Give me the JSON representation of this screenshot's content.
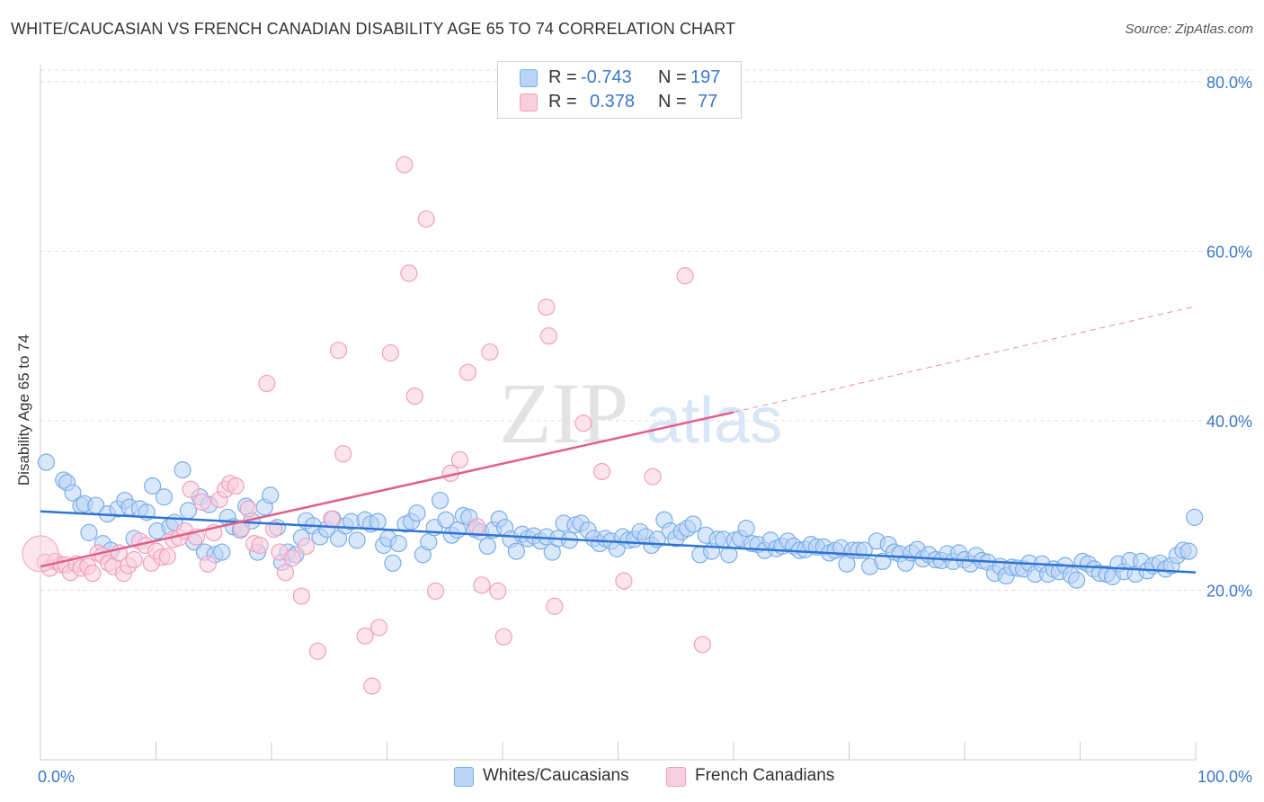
{
  "title": "WHITE/CAUCASIAN VS FRENCH CANADIAN DISABILITY AGE 65 TO 74 CORRELATION CHART",
  "source": "Source: ZipAtlas.com",
  "watermark": {
    "zip": "ZIP",
    "atlas": "atlas"
  },
  "legend": {
    "r_label": "R =",
    "n_label": "N =",
    "series": [
      {
        "r": "-0.743",
        "n": "197"
      },
      {
        "r": "0.378",
        "n": "77"
      }
    ]
  },
  "bottom_legend": [
    "Whites/Caucasians",
    "French Canadians"
  ],
  "chart_data": {
    "type": "scatter",
    "ylabel": "Disability Age 65 to 74",
    "xlim": [
      0,
      100
    ],
    "ylim": [
      0,
      82
    ],
    "x_tick_labels": [
      {
        "value": 0,
        "label": "0.0%"
      },
      {
        "value": 100,
        "label": "100.0%"
      }
    ],
    "y_tick_labels": [
      {
        "value": 20,
        "label": "20.0%"
      },
      {
        "value": 40,
        "label": "40.0%"
      },
      {
        "value": 60,
        "label": "60.0%"
      },
      {
        "value": 80,
        "label": "80.0%"
      }
    ],
    "series": [
      {
        "name": "Whites/Caucasians",
        "color": "#7aaee8",
        "fill": "#b9d4f5",
        "line_color": "#2f74d0",
        "trend": {
          "x": [
            0,
            100
          ],
          "y": [
            29.3,
            22.1
          ]
        },
        "points": [
          [
            0.5,
            35.1
          ],
          [
            2,
            33
          ],
          [
            2.3,
            32.7
          ],
          [
            2.8,
            31.5
          ],
          [
            3.5,
            30
          ],
          [
            3.8,
            30.2
          ],
          [
            4.2,
            26.8
          ],
          [
            4.8,
            30
          ],
          [
            5.4,
            25.5
          ],
          [
            5.8,
            29
          ],
          [
            6.1,
            24.7
          ],
          [
            6.7,
            29.6
          ],
          [
            7.3,
            30.6
          ],
          [
            7.7,
            29.8
          ],
          [
            8.1,
            26.1
          ],
          [
            8.6,
            29.6
          ],
          [
            9.2,
            29.2
          ],
          [
            9.7,
            32.3
          ],
          [
            10.1,
            27
          ],
          [
            10.7,
            31
          ],
          [
            11.2,
            27.5
          ],
          [
            11.6,
            28
          ],
          [
            12.3,
            34.2
          ],
          [
            12.8,
            29.4
          ],
          [
            13.3,
            25.7
          ],
          [
            13.8,
            31
          ],
          [
            14.2,
            24.5
          ],
          [
            14.6,
            30.1
          ],
          [
            15.1,
            24.2
          ],
          [
            15.7,
            24.5
          ],
          [
            16.2,
            28.6
          ],
          [
            16.7,
            27.5
          ],
          [
            17.3,
            27.1
          ],
          [
            17.8,
            29.9
          ],
          [
            18.3,
            28.2
          ],
          [
            18.8,
            24.5
          ],
          [
            19.4,
            29.8
          ],
          [
            19.9,
            31.2
          ],
          [
            20.5,
            27.4
          ],
          [
            20.9,
            23.3
          ],
          [
            21.4,
            24.5
          ],
          [
            22.1,
            24.2
          ],
          [
            22.6,
            26.2
          ],
          [
            23,
            28.2
          ],
          [
            23.6,
            27.6
          ],
          [
            24.2,
            26.3
          ],
          [
            24.8,
            27.2
          ],
          [
            25.3,
            28.4
          ],
          [
            25.8,
            26.1
          ],
          [
            26.4,
            27.6
          ],
          [
            26.9,
            28.1
          ],
          [
            27.4,
            25.9
          ],
          [
            28.1,
            28.3
          ],
          [
            28.6,
            27.8
          ],
          [
            29.2,
            28.1
          ],
          [
            29.7,
            25.3
          ],
          [
            30.1,
            26.1
          ],
          [
            30.5,
            23.2
          ],
          [
            31,
            25.5
          ],
          [
            31.6,
            27.8
          ],
          [
            32.1,
            28.1
          ],
          [
            32.6,
            29.1
          ],
          [
            33.1,
            24.2
          ],
          [
            33.6,
            25.7
          ],
          [
            34.1,
            27.4
          ],
          [
            34.6,
            30.6
          ],
          [
            35.1,
            28.3
          ],
          [
            35.6,
            26.5
          ],
          [
            36.1,
            27.1
          ],
          [
            36.6,
            28.8
          ],
          [
            37.1,
            28.6
          ],
          [
            37.6,
            27.2
          ],
          [
            38.1,
            26.9
          ],
          [
            38.7,
            25.2
          ],
          [
            39.2,
            27.1
          ],
          [
            39.7,
            28.4
          ],
          [
            40.2,
            27.4
          ],
          [
            40.7,
            26
          ],
          [
            41.2,
            24.6
          ],
          [
            41.7,
            26.6
          ],
          [
            42.2,
            26.1
          ],
          [
            42.7,
            26.4
          ],
          [
            43.3,
            25.8
          ],
          [
            43.8,
            26.3
          ],
          [
            44.3,
            24.5
          ],
          [
            44.8,
            26.1
          ],
          [
            45.3,
            27.9
          ],
          [
            45.8,
            25.9
          ],
          [
            46.3,
            27.7
          ],
          [
            46.8,
            27.9
          ],
          [
            47.4,
            27.1
          ],
          [
            47.9,
            26.1
          ],
          [
            48.4,
            25.5
          ],
          [
            48.9,
            26.1
          ],
          [
            49.4,
            25.8
          ],
          [
            49.9,
            24.9
          ],
          [
            50.4,
            26.3
          ],
          [
            50.9,
            25.9
          ],
          [
            51.4,
            26
          ],
          [
            51.9,
            26.9
          ],
          [
            52.4,
            26.3
          ],
          [
            52.9,
            25.3
          ],
          [
            53.4,
            26
          ],
          [
            54,
            28.3
          ],
          [
            54.5,
            27
          ],
          [
            55,
            26.1
          ],
          [
            55.5,
            26.9
          ],
          [
            56,
            27.3
          ],
          [
            56.5,
            27.8
          ],
          [
            57.1,
            24.2
          ],
          [
            57.6,
            26.5
          ],
          [
            58.1,
            24.6
          ],
          [
            58.6,
            26
          ],
          [
            59.1,
            26
          ],
          [
            59.6,
            24.2
          ],
          [
            60.1,
            25.9
          ],
          [
            60.6,
            26.1
          ],
          [
            61.1,
            27.3
          ],
          [
            61.6,
            25.5
          ],
          [
            62.1,
            25.4
          ],
          [
            62.7,
            24.7
          ],
          [
            63.2,
            25.9
          ],
          [
            63.7,
            24.9
          ],
          [
            64.2,
            25.2
          ],
          [
            64.7,
            25.8
          ],
          [
            65.2,
            25.2
          ],
          [
            65.7,
            24.7
          ],
          [
            66.2,
            24.8
          ],
          [
            66.7,
            25.4
          ],
          [
            67.2,
            25.1
          ],
          [
            67.8,
            25.1
          ],
          [
            68.3,
            24.4
          ],
          [
            68.8,
            24.7
          ],
          [
            69.3,
            25
          ],
          [
            69.8,
            23.1
          ],
          [
            70.3,
            24.7
          ],
          [
            70.8,
            24.7
          ],
          [
            71.3,
            24.7
          ],
          [
            71.8,
            22.8
          ],
          [
            72.4,
            25.8
          ],
          [
            72.9,
            23.4
          ],
          [
            73.4,
            25.4
          ],
          [
            73.9,
            24.5
          ],
          [
            74.4,
            24.3
          ],
          [
            74.9,
            23.2
          ],
          [
            75.4,
            24.4
          ],
          [
            75.9,
            24.8
          ],
          [
            76.4,
            23.7
          ],
          [
            76.9,
            24.2
          ],
          [
            77.5,
            23.6
          ],
          [
            78,
            23.5
          ],
          [
            78.5,
            24.3
          ],
          [
            79,
            23.4
          ],
          [
            79.5,
            24.4
          ],
          [
            80,
            23.6
          ],
          [
            80.5,
            23.1
          ],
          [
            81,
            24.1
          ],
          [
            81.5,
            23.5
          ],
          [
            82,
            23.3
          ],
          [
            82.6,
            22
          ],
          [
            83.1,
            22.8
          ],
          [
            83.6,
            21.7
          ],
          [
            84.1,
            22.7
          ],
          [
            84.6,
            22.6
          ],
          [
            85.1,
            22.5
          ],
          [
            85.6,
            23.2
          ],
          [
            86.1,
            21.9
          ],
          [
            86.7,
            23.1
          ],
          [
            87.2,
            21.9
          ],
          [
            87.7,
            22.5
          ],
          [
            88.2,
            22.2
          ],
          [
            88.7,
            22.9
          ],
          [
            89.2,
            21.8
          ],
          [
            89.7,
            21.2
          ],
          [
            90.2,
            23.4
          ],
          [
            90.7,
            23.1
          ],
          [
            91.2,
            22.5
          ],
          [
            91.7,
            22
          ],
          [
            92.3,
            21.9
          ],
          [
            92.8,
            21.6
          ],
          [
            93.3,
            23.1
          ],
          [
            93.8,
            22.2
          ],
          [
            94.3,
            23.5
          ],
          [
            94.8,
            21.9
          ],
          [
            95.3,
            23.4
          ],
          [
            95.8,
            22.3
          ],
          [
            96.3,
            22.9
          ],
          [
            96.9,
            23.2
          ],
          [
            97.4,
            22.5
          ],
          [
            97.9,
            22.9
          ],
          [
            98.4,
            24.1
          ],
          [
            98.9,
            24.7
          ],
          [
            99.4,
            24.6
          ],
          [
            99.9,
            28.6
          ]
        ]
      },
      {
        "name": "French Canadians",
        "color": "#f0a0bd",
        "fill": "#f9cede",
        "line_color": "#e0608c",
        "trend": {
          "x": [
            0,
            60
          ],
          "y": [
            22.8,
            41
          ]
        },
        "trend_ext": {
          "x": [
            60,
            100
          ],
          "y": [
            41,
            53.5
          ]
        },
        "points": [
          [
            0.4,
            23.3
          ],
          [
            0.8,
            22.6
          ],
          [
            1.3,
            23.4
          ],
          [
            1.8,
            23
          ],
          [
            2.2,
            23
          ],
          [
            2.6,
            22.1
          ],
          [
            3.1,
            23.1
          ],
          [
            3.5,
            22.6
          ],
          [
            4.1,
            22.8
          ],
          [
            4.5,
            22
          ],
          [
            5,
            24.4
          ],
          [
            5.4,
            24.1
          ],
          [
            5.9,
            23.2
          ],
          [
            6.3,
            22.8
          ],
          [
            6.8,
            24.4
          ],
          [
            7.2,
            22
          ],
          [
            7.6,
            22.9
          ],
          [
            8.1,
            23.6
          ],
          [
            8.6,
            25.8
          ],
          [
            9.1,
            25.3
          ],
          [
            9.6,
            23.2
          ],
          [
            10,
            24.6
          ],
          [
            10.5,
            23.9
          ],
          [
            11,
            24
          ],
          [
            11.5,
            26
          ],
          [
            12,
            26.2
          ],
          [
            12.5,
            27
          ],
          [
            13,
            31.9
          ],
          [
            13.5,
            26.3
          ],
          [
            14,
            30.4
          ],
          [
            14.5,
            23.1
          ],
          [
            15,
            26.8
          ],
          [
            15.5,
            30.7
          ],
          [
            16,
            31.9
          ],
          [
            16.4,
            32.6
          ],
          [
            16.9,
            32.3
          ],
          [
            17.4,
            27.3
          ],
          [
            18,
            29.6
          ],
          [
            18.5,
            25.5
          ],
          [
            19,
            25.3
          ],
          [
            19.6,
            44.4
          ],
          [
            20.2,
            27.2
          ],
          [
            20.7,
            24.5
          ],
          [
            21.2,
            22.1
          ],
          [
            21.8,
            23.8
          ],
          [
            22.6,
            19.3
          ],
          [
            23,
            25.2
          ],
          [
            24,
            12.8
          ],
          [
            25.2,
            28.4
          ],
          [
            25.8,
            48.3
          ],
          [
            26.2,
            36.1
          ],
          [
            28.1,
            14.6
          ],
          [
            28.7,
            8.7
          ],
          [
            29.3,
            15.6
          ],
          [
            30.3,
            48
          ],
          [
            31.5,
            70.2
          ],
          [
            31.9,
            57.4
          ],
          [
            32.4,
            42.9
          ],
          [
            33.4,
            63.8
          ],
          [
            34.2,
            19.9
          ],
          [
            35.5,
            33.8
          ],
          [
            36.3,
            35.4
          ],
          [
            37,
            45.7
          ],
          [
            37.8,
            27.5
          ],
          [
            38.2,
            20.6
          ],
          [
            38.9,
            48.1
          ],
          [
            39.6,
            19.9
          ],
          [
            40.1,
            14.5
          ],
          [
            43.8,
            53.4
          ],
          [
            44,
            50
          ],
          [
            44.5,
            18.1
          ],
          [
            47,
            39.7
          ],
          [
            48.6,
            34
          ],
          [
            50.5,
            21.1
          ],
          [
            53,
            33.4
          ],
          [
            55.8,
            57.1
          ],
          [
            57.3,
            13.6
          ]
        ]
      }
    ]
  }
}
